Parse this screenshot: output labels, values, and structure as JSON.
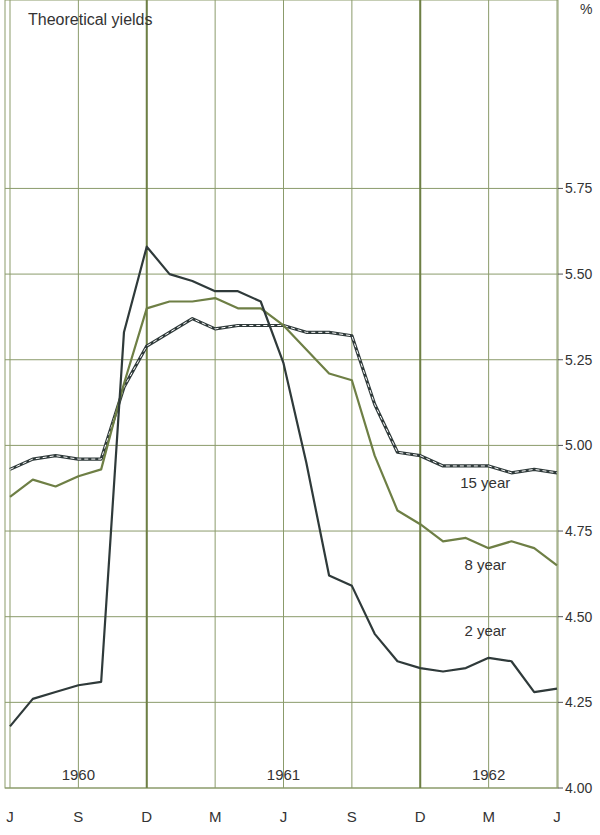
{
  "chart_data": {
    "type": "line",
    "title": "Theoretical yields",
    "y_label": "%",
    "categories": [
      "J",
      null,
      null,
      "S",
      null,
      null,
      "D",
      null,
      null,
      "M",
      null,
      null,
      "J",
      null,
      null,
      "S",
      null,
      null,
      "D",
      null,
      null,
      "M",
      null,
      null,
      "J"
    ],
    "year_labels": [
      "1960",
      "1961",
      "1962"
    ],
    "ylim": [
      4.0,
      6.3
    ],
    "yticks": [
      {
        "value": 4.0,
        "label": "4.00"
      },
      {
        "value": 4.25,
        "label": "4.25"
      },
      {
        "value": 4.5,
        "label": "4.50"
      },
      {
        "value": 4.75,
        "label": "4.75"
      },
      {
        "value": 5.0,
        "label": "5.00"
      },
      {
        "value": 5.25,
        "label": "5.25"
      },
      {
        "value": 5.5,
        "label": "5.50"
      },
      {
        "value": 5.75,
        "label": "5.75"
      }
    ],
    "grid": true,
    "series": [
      {
        "name": "15 year",
        "color": "#2f3a3a",
        "line_style": "dashed",
        "values": [
          4.93,
          4.96,
          4.97,
          4.96,
          4.96,
          5.17,
          5.29,
          5.33,
          5.37,
          5.34,
          5.35,
          5.35,
          5.35,
          5.33,
          5.33,
          5.32,
          5.12,
          4.98,
          4.97,
          4.94,
          4.94,
          4.94,
          4.92,
          4.93,
          4.92
        ]
      },
      {
        "name": "8 year",
        "color": "#6e7f45",
        "line_style": "solid",
        "values": [
          4.85,
          4.9,
          4.88,
          4.91,
          4.93,
          5.18,
          5.4,
          5.42,
          5.42,
          5.43,
          5.4,
          5.4,
          5.35,
          5.28,
          5.21,
          5.19,
          4.97,
          4.81,
          4.77,
          4.72,
          4.73,
          4.7,
          4.72,
          4.7,
          4.65
        ]
      },
      {
        "name": "2 year",
        "color": "#2f3a3a",
        "line_style": "solid",
        "values": [
          4.18,
          4.26,
          4.28,
          4.3,
          4.31,
          5.33,
          5.58,
          5.5,
          5.48,
          5.45,
          5.45,
          5.42,
          5.24,
          4.95,
          4.62,
          4.59,
          4.45,
          4.37,
          4.35,
          4.34,
          4.35,
          4.38,
          4.37,
          4.28,
          4.29
        ]
      }
    ]
  }
}
